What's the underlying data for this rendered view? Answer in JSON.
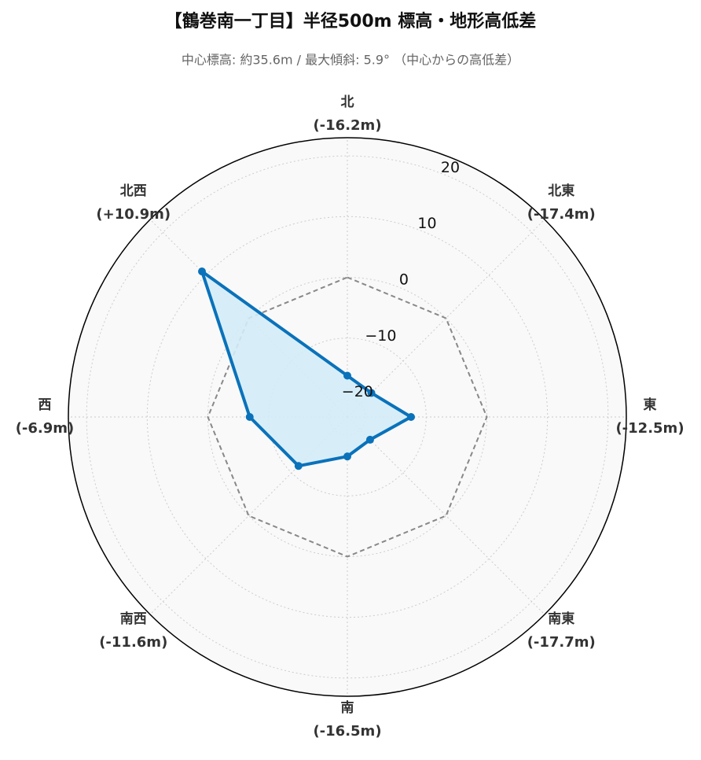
{
  "chart_data": {
    "type": "radar",
    "title": "【鶴巻南一丁目】半径500m 標高・地形高低差",
    "subtitle": "中心標高: 約35.6m / 最大傾斜: 5.9° （中心からの高低差）",
    "categories": [
      "北",
      "北東",
      "東",
      "南東",
      "南",
      "南西",
      "西",
      "北西"
    ],
    "values": [
      -16.2,
      -17.4,
      -12.5,
      -17.7,
      -16.5,
      -11.6,
      -6.9,
      10.9
    ],
    "value_labels": [
      "(-16.2m)",
      "(-17.4m)",
      "(-12.5m)",
      "(-17.7m)",
      "(-16.5m)",
      "(-11.6m)",
      "(-6.9m)",
      "(+10.9m)"
    ],
    "color": "#0a72ba",
    "fill": "#d3ecf8",
    "ylim": [
      -23,
      23
    ],
    "yticks": [
      {
        "value": -20,
        "label": "−20"
      },
      {
        "value": -10,
        "label": "−10"
      },
      0,
      10,
      20
    ],
    "reference_line": {
      "value": 0,
      "color": "#888888"
    },
    "grid": true
  }
}
